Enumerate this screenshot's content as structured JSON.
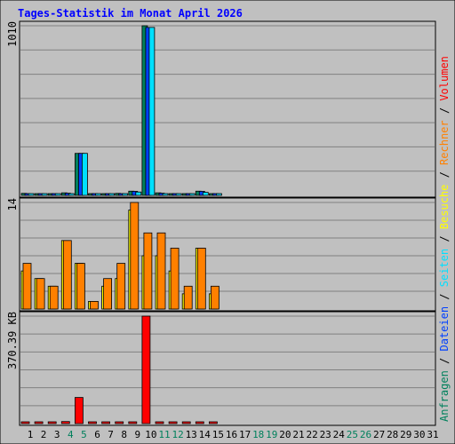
{
  "chart_data": {
    "type": "bar",
    "title": "Tages-Statistik im Monat April 2026",
    "categories": [
      "1",
      "2",
      "3",
      "4",
      "5",
      "6",
      "7",
      "8",
      "9",
      "10",
      "11",
      "12",
      "13",
      "14",
      "15",
      "16",
      "17",
      "18",
      "19",
      "20",
      "21",
      "22",
      "23",
      "24",
      "25",
      "26",
      "27",
      "28",
      "29",
      "30",
      "31"
    ],
    "weekend_days": [
      4,
      5,
      11,
      12,
      18,
      19,
      25,
      26
    ],
    "right_legend": [
      {
        "text": "Anfragen",
        "color": "#00805c"
      },
      {
        "text": " / ",
        "color": "#000000"
      },
      {
        "text": "Dateien",
        "color": "#0040ff"
      },
      {
        "text": " / ",
        "color": "#000000"
      },
      {
        "text": "Seiten",
        "color": "#00e0ff"
      },
      {
        "text": " / ",
        "color": "#000000"
      },
      {
        "text": "Besuche",
        "color": "#ffff00"
      },
      {
        "text": " / ",
        "color": "#000000"
      },
      {
        "text": "Rechner",
        "color": "#ff8000"
      },
      {
        "text": " / ",
        "color": "#000000"
      },
      {
        "text": "Volumen",
        "color": "#ff0000"
      }
    ],
    "panels": [
      {
        "axis_label": "1010",
        "ylim": [
          0,
          1010
        ],
        "series": [
          {
            "name": "Anfragen",
            "color": "#00805c",
            "values": [
              12,
              5,
              5,
              15,
              250,
              5,
              5,
              12,
              25,
              1010,
              15,
              10,
              8,
              25,
              5,
              null,
              null,
              null,
              null,
              null,
              null,
              null,
              null,
              null,
              null,
              null,
              null,
              null,
              null,
              null,
              null
            ]
          },
          {
            "name": "Dateien",
            "color": "#0040ff",
            "values": [
              10,
              4,
              4,
              13,
              250,
              4,
              4,
              10,
              24,
              1000,
              13,
              8,
              6,
              24,
              4,
              null,
              null,
              null,
              null,
              null,
              null,
              null,
              null,
              null,
              null,
              null,
              null,
              null,
              null,
              null,
              null
            ]
          },
          {
            "name": "Seiten",
            "color": "#00e0ff",
            "values": [
              6,
              2,
              2,
              10,
              250,
              2,
              2,
              5,
              20,
              1000,
              8,
              5,
              3,
              18,
              2,
              null,
              null,
              null,
              null,
              null,
              null,
              null,
              null,
              null,
              null,
              null,
              null,
              null,
              null,
              null,
              null
            ]
          }
        ]
      },
      {
        "axis_label": "14",
        "ylim": [
          0,
          14
        ],
        "series": [
          {
            "name": "Besuche",
            "color": "#ffff00",
            "values": [
              5,
              4,
              3,
              9,
              6,
              1,
              3,
              4,
              13,
              7,
              7,
              5,
              2,
              8,
              2,
              null,
              null,
              null,
              null,
              null,
              null,
              null,
              null,
              null,
              null,
              null,
              null,
              null,
              null,
              null,
              null
            ]
          },
          {
            "name": "Rechner",
            "color": "#ff8000",
            "values": [
              6,
              4,
              3,
              9,
              6,
              1,
              4,
              6,
              14,
              10,
              10,
              8,
              3,
              8,
              3,
              null,
              null,
              null,
              null,
              null,
              null,
              null,
              null,
              null,
              null,
              null,
              null,
              null,
              null,
              null,
              null
            ]
          }
        ]
      },
      {
        "axis_label": "370.39 KB",
        "ylim": [
          0,
          370.39
        ],
        "series": [
          {
            "name": "Volumen",
            "color": "#ff0000",
            "values": [
              2,
              2,
              2,
              7,
              90,
              2,
              2,
              2,
              6,
              370.39,
              2,
              2,
              2,
              6,
              2,
              null,
              null,
              null,
              null,
              null,
              null,
              null,
              null,
              null,
              null,
              null,
              null,
              null,
              null,
              null,
              null
            ]
          }
        ]
      }
    ],
    "colors": {
      "background": "#c0c0c0",
      "frame": "#e8e8e8",
      "gridline": "#808080",
      "title": "#0000ff",
      "weekday": "#000000",
      "weekend": "#00805c"
    }
  }
}
